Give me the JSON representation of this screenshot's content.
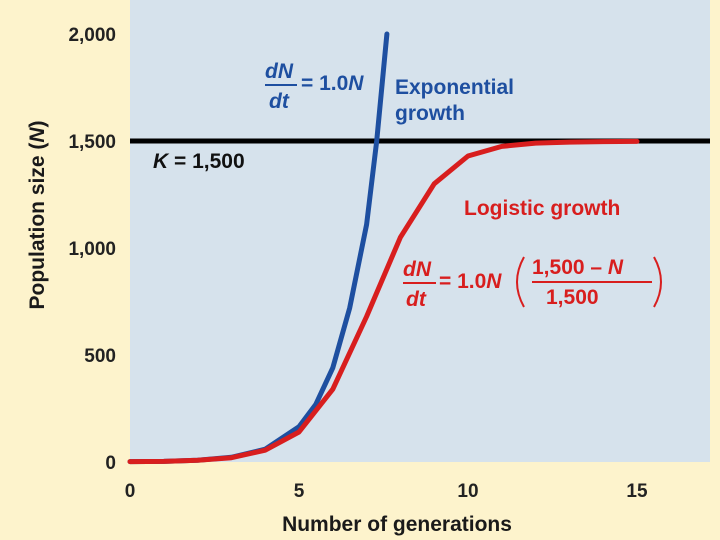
{
  "chart_data": {
    "type": "line",
    "xlabel": "Number of generations",
    "ylabel_prefix": "Population size (",
    "ylabel_var": "N",
    "ylabel_suffix": ")",
    "xlim": [
      0,
      17
    ],
    "ylim": [
      0,
      2000
    ],
    "x_ticks": [
      0,
      5,
      10,
      15
    ],
    "x_tick_labels": [
      "0",
      "5",
      "10",
      "15"
    ],
    "y_ticks": [
      0,
      500,
      1000,
      1500,
      2000
    ],
    "y_tick_labels": [
      "0",
      "500",
      "1,000",
      "1,500",
      "2,000"
    ],
    "grid": false,
    "series": [
      {
        "name": "Exponential growth",
        "color": "#1e4fa0",
        "x": [
          0,
          1,
          2,
          3,
          4,
          5,
          5.5,
          6,
          6.5,
          7,
          7.3,
          7.6
        ],
        "y": [
          2,
          3,
          8,
          22,
          60,
          165,
          270,
          440,
          720,
          1110,
          1500,
          2000
        ]
      },
      {
        "name": "Logistic growth",
        "color": "#d81e1e",
        "x": [
          0,
          1,
          2,
          3,
          4,
          5,
          6,
          7,
          8,
          9,
          10,
          11,
          12,
          13,
          14,
          15
        ],
        "y": [
          2,
          3,
          8,
          20,
          55,
          140,
          340,
          680,
          1050,
          1300,
          1430,
          1475,
          1490,
          1495,
          1497,
          1498
        ]
      }
    ],
    "carrying_capacity": {
      "value": 1500,
      "color": "#000000"
    },
    "annotations": {
      "k_label": {
        "var": "K",
        "rest": " = 1,500"
      },
      "exp_label": {
        "line1": "Exponential",
        "line2": "growth"
      },
      "exp_equation": {
        "num": "dN",
        "den": "dt",
        "eq": "= 1.0",
        "var": "N"
      },
      "log_label": "Logistic growth",
      "log_equation": {
        "num": "dN",
        "den": "dt",
        "eq": "= 1.0",
        "var": "N",
        "frac_num_prefix": "1,500 – ",
        "frac_num_var": "N",
        "frac_den": "1,500"
      }
    },
    "plot_bg": "#d6e2ec",
    "page_bg": "#fdf3cc"
  }
}
